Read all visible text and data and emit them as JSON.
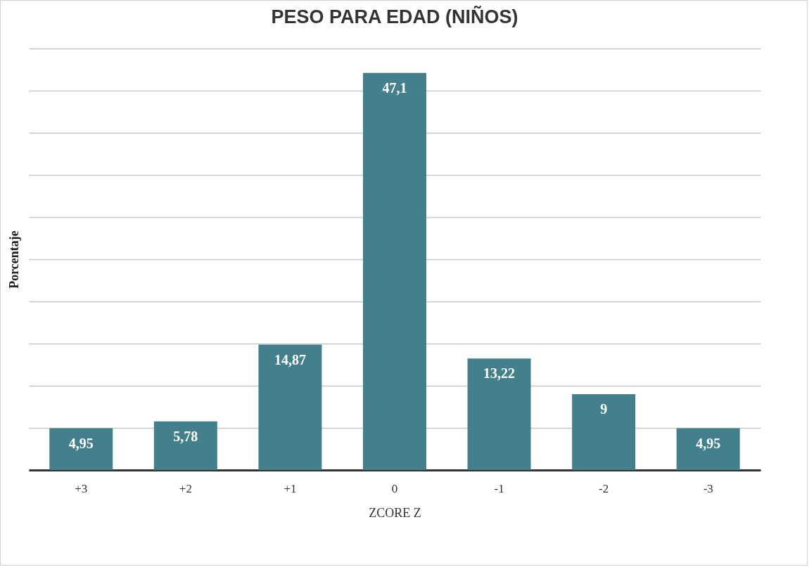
{
  "chart_data": {
    "type": "bar",
    "title": "PESO PARA EDAD (NIÑOS)",
    "xlabel": "ZCORE Z",
    "ylabel": "Porcentaje",
    "categories": [
      "+3",
      "+2",
      "+1",
      "0",
      "-1",
      "-2",
      "-3"
    ],
    "values": [
      4.95,
      5.78,
      14.87,
      47.1,
      13.22,
      9,
      4.95
    ],
    "value_labels": [
      "4,95",
      "5,78",
      "14,87",
      "47,1",
      "13,22",
      "9",
      "4,95"
    ],
    "color": "#44808c",
    "ylim": [
      0,
      50
    ],
    "yticks": [
      {
        "value": 0,
        "label": null
      },
      {
        "value": 5,
        "label": null
      },
      {
        "value": 10,
        "label": null
      },
      {
        "value": 15,
        "label": null
      },
      {
        "value": 20,
        "label": null
      },
      {
        "value": 25,
        "label": null
      },
      {
        "value": 30,
        "label": null
      },
      {
        "value": 35,
        "label": null
      },
      {
        "value": 40,
        "label": null
      },
      {
        "value": 45,
        "label": null
      },
      {
        "value": 50,
        "label": null
      }
    ],
    "grid": "y",
    "tick_labels": "x"
  }
}
